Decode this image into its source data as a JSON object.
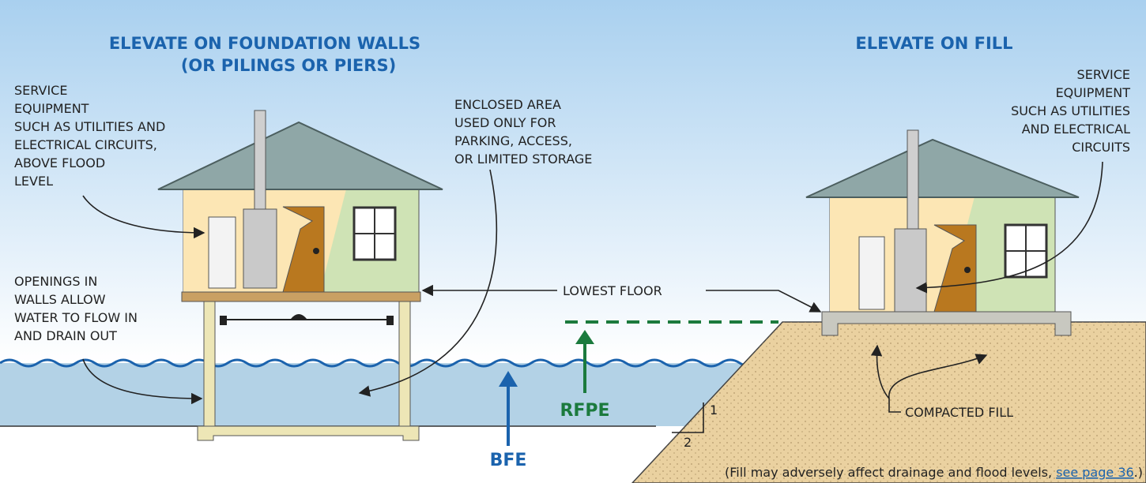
{
  "left_title": [
    "ELEVATE ON FOUNDATION WALLS",
    "(OR PILINGS OR PIERS)"
  ],
  "right_title": "ELEVATE ON FILL",
  "service_left": [
    "SERVICE",
    "EQUIPMENT",
    "SUCH AS UTILITIES AND",
    "ELECTRICAL CIRCUITS,",
    "ABOVE FLOOD",
    "LEVEL"
  ],
  "enclosed": [
    "ENCLOSED AREA",
    "USED ONLY FOR",
    "PARKING, ACCESS,",
    "OR LIMITED STORAGE"
  ],
  "openings": [
    "OPENINGS IN",
    "WALLS ALLOW",
    "WATER TO FLOW IN",
    "AND DRAIN OUT"
  ],
  "service_right": [
    "SERVICE",
    "EQUIPMENT",
    "SUCH AS UTILITIES",
    "AND ELECTRICAL",
    "CIRCUITS"
  ],
  "lowest_floor": "LOWEST FLOOR",
  "compacted_fill": "COMPACTED FILL",
  "bfe": "BFE",
  "rfpe": "RFPE",
  "slope_rise": "1",
  "slope_run": "2",
  "footnote": {
    "before": "(Fill may adversely affect drainage and flood levels, ",
    "link": "see page 36",
    "after": ".)"
  }
}
